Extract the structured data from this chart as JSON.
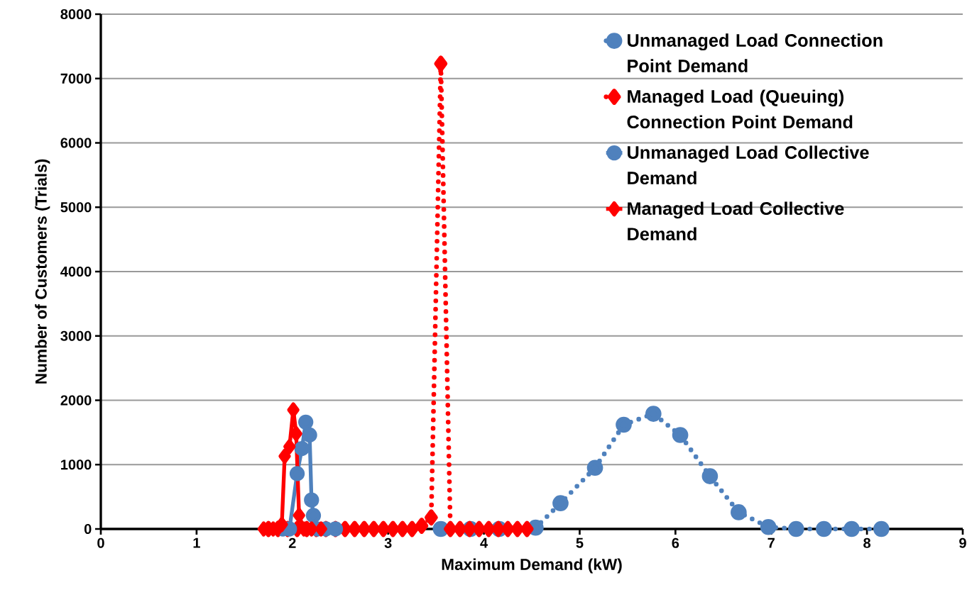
{
  "chart_data": {
    "type": "line",
    "xlabel": "Maximum Demand (kW)",
    "ylabel": "Number of Customers (Trials)",
    "xlim": [
      0,
      9
    ],
    "ylim": [
      0,
      8000
    ],
    "xticks": [
      0,
      1,
      2,
      3,
      4,
      5,
      6,
      7,
      8,
      9
    ],
    "yticks": [
      0,
      1000,
      2000,
      3000,
      4000,
      5000,
      6000,
      7000,
      8000
    ],
    "grid": "y",
    "legend": "top right",
    "series": [
      {
        "name": "Unmanaged Load Connection Point Demand",
        "color": "#4f81bd",
        "marker": "circle",
        "line_style": "dotted",
        "x": [
          3.55,
          3.86,
          4.16,
          4.54,
          4.8,
          5.16,
          5.46,
          5.77,
          6.05,
          6.36,
          6.66,
          6.97,
          7.26,
          7.55,
          7.84,
          8.15
        ],
        "values": [
          0,
          0,
          0,
          20,
          400,
          950,
          1620,
          1790,
          1460,
          820,
          260,
          30,
          0,
          0,
          0,
          0
        ]
      },
      {
        "name": "Managed Load (Queuing) Connection Point Demand",
        "color": "#ff0000",
        "marker": "diamond",
        "line_style": "dotted",
        "x": [
          1.75,
          1.85,
          1.95,
          2.05,
          2.15,
          2.25,
          2.35,
          2.45,
          2.55,
          2.65,
          2.75,
          2.85,
          2.95,
          3.05,
          3.15,
          3.25,
          3.35,
          3.45,
          3.55,
          3.65,
          3.75,
          3.85,
          3.95,
          4.05,
          4.15,
          4.25,
          4.35,
          4.45
        ],
        "values": [
          0,
          0,
          0,
          0,
          0,
          0,
          0,
          0,
          0,
          0,
          0,
          0,
          0,
          0,
          0,
          0,
          50,
          180,
          7230,
          0,
          0,
          0,
          0,
          0,
          0,
          0,
          0,
          0
        ]
      },
      {
        "name": "Unmanaged Load Collective Demand",
        "color": "#4f81bd",
        "marker": "circle",
        "line_style": "solid",
        "x": [
          1.9,
          1.97,
          2.05,
          2.1,
          2.14,
          2.18,
          2.2,
          2.22,
          2.26,
          2.35,
          2.45
        ],
        "values": [
          0,
          0,
          860,
          1250,
          1660,
          1460,
          450,
          210,
          0,
          0,
          0
        ]
      },
      {
        "name": "Managed Load Collective Demand",
        "color": "#ff0000",
        "marker": "diamond",
        "line_style": "solid",
        "x": [
          1.7,
          1.75,
          1.8,
          1.85,
          1.89,
          1.92,
          1.97,
          2.01,
          2.04,
          2.07,
          2.12,
          2.2,
          2.3
        ],
        "values": [
          0,
          0,
          0,
          10,
          70,
          1130,
          1280,
          1850,
          1480,
          210,
          0,
          0,
          0
        ]
      }
    ]
  }
}
